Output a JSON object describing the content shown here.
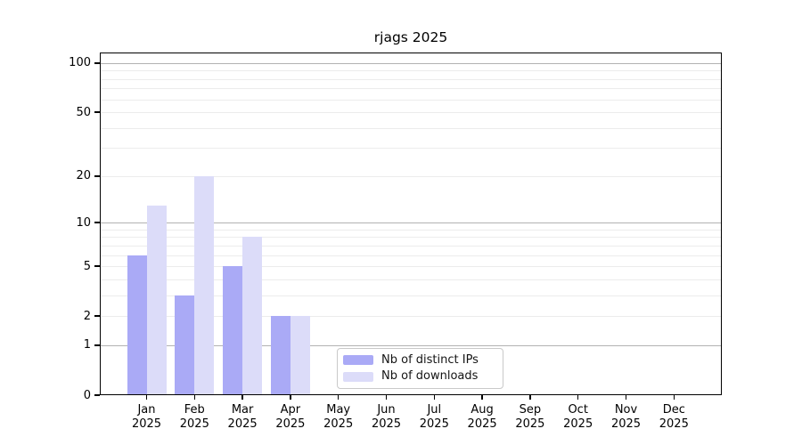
{
  "chart_data": {
    "type": "bar",
    "title": "rjags 2025",
    "categories": [
      "Jan",
      "Feb",
      "Mar",
      "Apr",
      "May",
      "Jun",
      "Jul",
      "Aug",
      "Sep",
      "Oct",
      "Nov",
      "Dec"
    ],
    "x_year_label": "2025",
    "series": [
      {
        "name": "Nb of distinct IPs",
        "color": "#aaaaf6",
        "values": [
          6,
          3,
          5,
          2,
          0,
          0,
          0,
          0,
          0,
          0,
          0,
          0
        ]
      },
      {
        "name": "Nb of downloads",
        "color": "#dcdcf9",
        "values": [
          13,
          20,
          8,
          2,
          0,
          0,
          0,
          0,
          0,
          0,
          0,
          0
        ]
      }
    ],
    "y_axis": {
      "scale": "log1p",
      "ticks": [
        0,
        1,
        2,
        5,
        10,
        20,
        50,
        100
      ],
      "ylim": [
        0,
        116
      ],
      "major_gridlines": [
        1,
        10,
        100
      ],
      "minor_gridlines": [
        2,
        3,
        4,
        5,
        6,
        7,
        8,
        9,
        20,
        30,
        40,
        50,
        60,
        70,
        80,
        90
      ]
    },
    "legend": {
      "position": "lower-center",
      "entries": [
        "Nb of distinct IPs",
        "Nb of downloads"
      ]
    },
    "grid": "on"
  }
}
